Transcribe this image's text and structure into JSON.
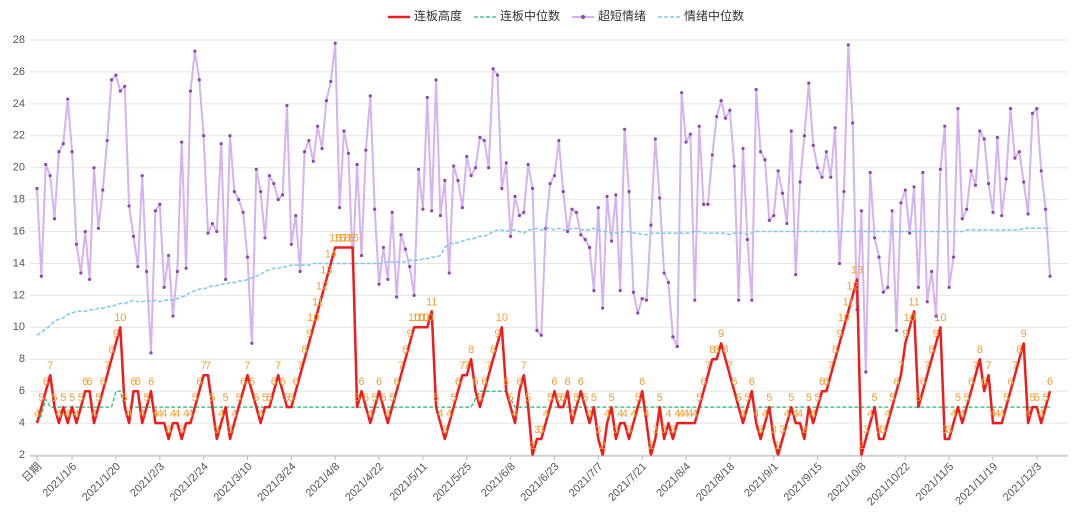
{
  "chart_data": {
    "type": "line",
    "legend": "top",
    "grid": true,
    "ylim": [
      2,
      28
    ],
    "yticks": [
      2,
      4,
      6,
      8,
      10,
      12,
      14,
      16,
      18,
      20,
      22,
      24,
      26,
      28
    ],
    "categories": [
      "日期",
      null,
      null,
      null,
      null,
      null,
      null,
      null,
      "2021/1/6",
      null,
      null,
      null,
      null,
      null,
      null,
      null,
      null,
      null,
      "2021/1/20",
      null,
      null,
      null,
      null,
      null,
      null,
      null,
      null,
      null,
      "2021/2/3",
      null,
      null,
      null,
      null,
      null,
      null,
      null,
      null,
      null,
      "2021/2/24",
      null,
      null,
      null,
      null,
      null,
      null,
      null,
      null,
      null,
      "2021/3/10",
      null,
      null,
      null,
      null,
      null,
      null,
      null,
      null,
      null,
      "2021/3/24",
      null,
      null,
      null,
      null,
      null,
      null,
      null,
      null,
      null,
      "2021/4/8",
      null,
      null,
      null,
      null,
      null,
      null,
      null,
      null,
      null,
      "2021/4/22",
      null,
      null,
      null,
      null,
      null,
      null,
      null,
      null,
      null,
      "2021/5/11",
      null,
      null,
      null,
      null,
      null,
      null,
      null,
      null,
      null,
      "2021/5/25",
      null,
      null,
      null,
      null,
      null,
      null,
      null,
      null,
      null,
      "2021/6/8",
      null,
      null,
      null,
      null,
      null,
      null,
      null,
      null,
      null,
      "2021/6/23",
      null,
      null,
      null,
      null,
      null,
      null,
      null,
      null,
      null,
      "2021/7/7",
      null,
      null,
      null,
      null,
      null,
      null,
      null,
      null,
      null,
      "2021/7/21",
      null,
      null,
      null,
      null,
      null,
      null,
      null,
      null,
      null,
      "2021/8/4",
      null,
      null,
      null,
      null,
      null,
      null,
      null,
      null,
      null,
      "2021/8/18",
      null,
      null,
      null,
      null,
      null,
      null,
      null,
      null,
      null,
      "2021/9/1",
      null,
      null,
      null,
      null,
      null,
      null,
      null,
      null,
      null,
      "2021/9/15",
      null,
      null,
      null,
      null,
      null,
      null,
      null,
      null,
      null,
      "2021/10/8",
      null,
      null,
      null,
      null,
      null,
      null,
      null,
      null,
      null,
      "2021/10/22",
      null,
      null,
      null,
      null,
      null,
      null,
      null,
      null,
      null,
      "2021/11/5",
      null,
      null,
      null,
      null,
      null,
      null,
      null,
      null,
      null,
      "2021/11/19",
      null,
      null,
      null,
      null,
      null,
      null,
      null,
      null,
      null,
      "2021/12/3",
      null,
      null,
      null
    ],
    "series": [
      {
        "name": "连板高度",
        "color": "#ee1c1c",
        "width": 2.5,
        "dashed": false,
        "data_labels": true,
        "marker": "none",
        "values": [
          4,
          5,
          6,
          7,
          5,
          4,
          5,
          4,
          5,
          4,
          5,
          6,
          6,
          4,
          5,
          6,
          7,
          8,
          9,
          10,
          5,
          4,
          6,
          6,
          4,
          5,
          6,
          4,
          4,
          4,
          3,
          4,
          4,
          3,
          4,
          4,
          5,
          6,
          7,
          7,
          5,
          3,
          4,
          5,
          3,
          4,
          5,
          6,
          7,
          6,
          5,
          4,
          5,
          5,
          6,
          7,
          6,
          5,
          5,
          6,
          7,
          8,
          9,
          10,
          11,
          12,
          13,
          14,
          15,
          15,
          15,
          15,
          15,
          5,
          6,
          5,
          4,
          5,
          6,
          5,
          4,
          5,
          6,
          7,
          8,
          9,
          10,
          10,
          10,
          10,
          11,
          5,
          4,
          3,
          4,
          5,
          6,
          7,
          7,
          8,
          6,
          5,
          6,
          7,
          8,
          9,
          10,
          6,
          5,
          4,
          6,
          7,
          5,
          2,
          3,
          3,
          4,
          5,
          6,
          5,
          5,
          6,
          4,
          5,
          6,
          5,
          4,
          5,
          3,
          2,
          4,
          5,
          3,
          4,
          4,
          3,
          4,
          5,
          6,
          4,
          2,
          3,
          5,
          3,
          4,
          3,
          4,
          4,
          4,
          4,
          4,
          5,
          6,
          7,
          8,
          8,
          9,
          8,
          7,
          6,
          5,
          4,
          5,
          6,
          4,
          3,
          4,
          5,
          3,
          2,
          3,
          4,
          5,
          4,
          4,
          3,
          5,
          4,
          5,
          6,
          6,
          7,
          8,
          9,
          10,
          11,
          12,
          13,
          2,
          3,
          4,
          5,
          3,
          3,
          4,
          5,
          6,
          7,
          9,
          10,
          11,
          5,
          6,
          7,
          8,
          9,
          10,
          3,
          3,
          4,
          5,
          4,
          5,
          6,
          7,
          8,
          6,
          7,
          4,
          4,
          4,
          5,
          6,
          7,
          8,
          9,
          4,
          5,
          5,
          4,
          5,
          6
        ]
      },
      {
        "name": "连板中位数",
        "color": "#4cc08a",
        "width": 1.5,
        "dashed": true,
        "data_labels": false,
        "marker": "none",
        "values": [
          4,
          4.5,
          5.5,
          5,
          5,
          5,
          5,
          5,
          5,
          5,
          5,
          5,
          5,
          5,
          5,
          5,
          5,
          5,
          6,
          6,
          5,
          5,
          5,
          5,
          5,
          5,
          5,
          5,
          5,
          5,
          5,
          5,
          5,
          5,
          5,
          5,
          5,
          5,
          5,
          5,
          5,
          5,
          5,
          5,
          5,
          5,
          5,
          5,
          5,
          5,
          5,
          5,
          5,
          5,
          5,
          5,
          5,
          5,
          5,
          5,
          5,
          5,
          5,
          5,
          5,
          5,
          5,
          5,
          5,
          5,
          5,
          5,
          5,
          5,
          5,
          5,
          5,
          5,
          5,
          5,
          5,
          5,
          5,
          5,
          5,
          5,
          5,
          5,
          5,
          5,
          5,
          5,
          5,
          5,
          5,
          5,
          5,
          5,
          5,
          5,
          5.5,
          6,
          6,
          6,
          6,
          6,
          6,
          6,
          5.5,
          5,
          5,
          5,
          5,
          5,
          5,
          5,
          5,
          5,
          5,
          5,
          5,
          5,
          5,
          5,
          5,
          5,
          5,
          5,
          5,
          5,
          5,
          5,
          5,
          5,
          5,
          5,
          5,
          5,
          5,
          5,
          5,
          5,
          5,
          5,
          5,
          5,
          5,
          5,
          5,
          5,
          5,
          5,
          5,
          5,
          5,
          5,
          5,
          5,
          5,
          5,
          5,
          5,
          5,
          5,
          5,
          5,
          5,
          5,
          5,
          5,
          5,
          5,
          5,
          5,
          5,
          5,
          5,
          5,
          5,
          5,
          5,
          5,
          5,
          5,
          5,
          5,
          5,
          5,
          5,
          5,
          5,
          5,
          5,
          5,
          5,
          5,
          5,
          5,
          5,
          5,
          5,
          5,
          5,
          5,
          5,
          5,
          5,
          5,
          5,
          5,
          5,
          5,
          5,
          5,
          5,
          5,
          5,
          5,
          5,
          5,
          5,
          5,
          5,
          5,
          5,
          5,
          5,
          5,
          5,
          5,
          5,
          5
        ]
      },
      {
        "name": "超短情绪",
        "color": "#d6b2f0",
        "width": 2,
        "dashed": false,
        "data_labels": false,
        "marker": "#8e44ad",
        "values": [
          18.7,
          13.2,
          20.2,
          19.5,
          16.8,
          21,
          21.5,
          24.3,
          21,
          15.2,
          13.4,
          16,
          13,
          20,
          16.2,
          18.6,
          21.7,
          25.5,
          25.8,
          24.8,
          25.1,
          17.6,
          15.7,
          13.8,
          19.5,
          13.5,
          8.4,
          17.3,
          17.7,
          12.5,
          14.5,
          10.7,
          13.5,
          21.6,
          13.7,
          24.8,
          27.3,
          25.5,
          22,
          15.9,
          16.5,
          16,
          21.5,
          13,
          22,
          18.5,
          18,
          17.2,
          14.4,
          9,
          19.9,
          18.5,
          15.6,
          19.5,
          19,
          18,
          18.3,
          23.9,
          15.2,
          17,
          13.5,
          21,
          21.7,
          20.4,
          22.6,
          21.2,
          24.2,
          25.4,
          27.8,
          17.5,
          22.3,
          20.9,
          14,
          20.2,
          14.5,
          21.1,
          24.5,
          17.4,
          12.7,
          15,
          13,
          17.2,
          11.9,
          15.8,
          14.9,
          13.8,
          12,
          19.9,
          17.4,
          24.4,
          17.3,
          25.5,
          17,
          19.2,
          13.4,
          20.1,
          19.2,
          17.5,
          20.7,
          19.5,
          20,
          21.9,
          21.7,
          20,
          26.2,
          25.8,
          18.7,
          20.3,
          15.7,
          18.2,
          17,
          17.2,
          20.2,
          18.7,
          9.8,
          9.5,
          16.2,
          19,
          19.5,
          21.7,
          18.5,
          16,
          17.4,
          17.2,
          15.8,
          15.5,
          15,
          12.3,
          17.5,
          11.2,
          18.2,
          15.4,
          18.3,
          12.3,
          22.4,
          18.5,
          12.2,
          10.9,
          11.8,
          11.7,
          16.4,
          21.8,
          18.1,
          13.4,
          12.8,
          9.4,
          8.8,
          24.7,
          21.6,
          22.1,
          11.7,
          22.6,
          17.7,
          17.7,
          20.8,
          23.2,
          24.2,
          23.1,
          23.6,
          20.1,
          11.7,
          21.2,
          15.5,
          11.7,
          24.9,
          21,
          20.5,
          16.7,
          17,
          19.8,
          18.4,
          16.5,
          22.3,
          13.3,
          19.1,
          22,
          25.3,
          21.4,
          20,
          19.4,
          21,
          19.4,
          22.5,
          14,
          18.5,
          27.7,
          22.8,
          11.1,
          17.3,
          7.2,
          19.7,
          15.6,
          14.4,
          12.2,
          12.5,
          17.3,
          9.8,
          17.8,
          18.6,
          15.9,
          18.8,
          12.5,
          19.7,
          11.6,
          13.5,
          10.7,
          19.9,
          22.6,
          12.5,
          14.4,
          23.7,
          16.8,
          17.4,
          19.8,
          18.9,
          22.3,
          21.8,
          19,
          17.2,
          21.9,
          17,
          19.3,
          23.7,
          20.6,
          21,
          19.1,
          17.1,
          23.4,
          23.7,
          19.8,
          17.4,
          13.2
        ]
      },
      {
        "name": "情绪中位数",
        "color": "#7cc8ee",
        "width": 1.5,
        "dashed": true,
        "data_labels": false,
        "marker": "none",
        "values": [
          9.5,
          9.7,
          9.9,
          10.1,
          10.4,
          10.5,
          10.6,
          10.8,
          10.9,
          11.0,
          11.0,
          11.0,
          11.1,
          11.1,
          11.2,
          11.2,
          11.3,
          11.3,
          11.4,
          11.5,
          11.5,
          11.6,
          11.7,
          11.6,
          11.6,
          11.7,
          11.6,
          11.7,
          11.6,
          11.7,
          11.7,
          11.7,
          11.8,
          11.9,
          12.0,
          12.2,
          12.3,
          12.4,
          12.4,
          12.5,
          12.6,
          12.6,
          12.7,
          12.7,
          12.8,
          12.8,
          12.9,
          12.9,
          13.0,
          13.1,
          13.2,
          13.3,
          13.5,
          13.6,
          13.7,
          13.7,
          13.8,
          13.8,
          13.9,
          13.9,
          13.9,
          13.9,
          13.9,
          14.0,
          14.0,
          14.0,
          14.0,
          14.0,
          14.0,
          14.0,
          14.0,
          14.0,
          14.0,
          14.0,
          14.0,
          14.0,
          14.0,
          14.0,
          14.0,
          14.0,
          14.1,
          14.1,
          14.1,
          14.1,
          14.1,
          14.2,
          14.2,
          14.2,
          14.3,
          14.3,
          14.4,
          14.4,
          14.5,
          15.0,
          15.2,
          15.3,
          15.3,
          15.4,
          15.5,
          15.5,
          15.6,
          15.7,
          15.7,
          15.8,
          16.0,
          16.1,
          16.1,
          16.0,
          16.1,
          16.1,
          16.0,
          15.9,
          16.1,
          16.1,
          16.2,
          16.1,
          16.2,
          16.2,
          16.1,
          16.2,
          16.1,
          16.1,
          16.2,
          16.2,
          16.1,
          16.1,
          16.1,
          16.2,
          16.1,
          16.0,
          16.0,
          15.9,
          15.9,
          15.9,
          16.0,
          16.0,
          15.9,
          15.9,
          15.8,
          15.8,
          15.9,
          15.9,
          15.9,
          15.9,
          15.9,
          15.9,
          15.9,
          15.9,
          15.9,
          15.9,
          16.0,
          16.0,
          15.9,
          15.9,
          15.9,
          15.9,
          15.9,
          15.9,
          15.8,
          15.9,
          15.9,
          15.9,
          15.8,
          15.9,
          16.0,
          16.0,
          16.0,
          16.0,
          16.0,
          16.0,
          16.0,
          16.0,
          16.0,
          16.0,
          16.0,
          16.0,
          16.0,
          16.0,
          16.0,
          16.0,
          16.0,
          16.0,
          16.0,
          16.0,
          16.0,
          16.0,
          16.0,
          16.0,
          16.0,
          16.0,
          16.0,
          16.0,
          16.0,
          16.0,
          16.0,
          16.0,
          16.0,
          16.0,
          16.0,
          16.0,
          16.0,
          16.0,
          16.0,
          16.0,
          16.0,
          16.0,
          16.0,
          16.0,
          16.0,
          16.0,
          16.0,
          16.0,
          16.1,
          16.1,
          16.1,
          16.1,
          16.1,
          16.1,
          16.1,
          16.1,
          16.1,
          16.1,
          16.1,
          16.1,
          16.1,
          16.2,
          16.2,
          16.2,
          16.2,
          16.2,
          16.2,
          16.2
        ]
      }
    ]
  }
}
